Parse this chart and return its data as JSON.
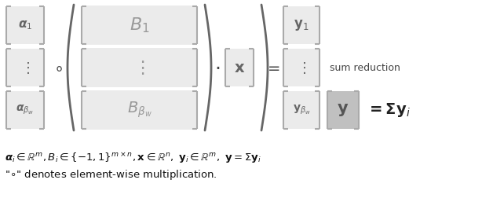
{
  "bg_color": "#ffffff",
  "light_gray": "#ebebeb",
  "medium_gray": "#aaaaaa",
  "dark_gray": "#999999",
  "text_color": "#666666",
  "figsize": [
    6.28,
    2.66
  ],
  "dpi": 100,
  "bottom_text_line1": "$\\boldsymbol{\\alpha}_i \\in \\mathbb{R}^m,B_i \\in \\{-1,1\\}^{m\\times n},\\mathbf{x} \\in \\mathbb{R}^n,\\ \\mathbf{y}_i \\in \\mathbb{R}^m,\\ \\mathbf{y} = \\Sigma\\mathbf{y}_i$",
  "bottom_text_line2": "\"$\\circ$\" denotes element-wise multiplication."
}
